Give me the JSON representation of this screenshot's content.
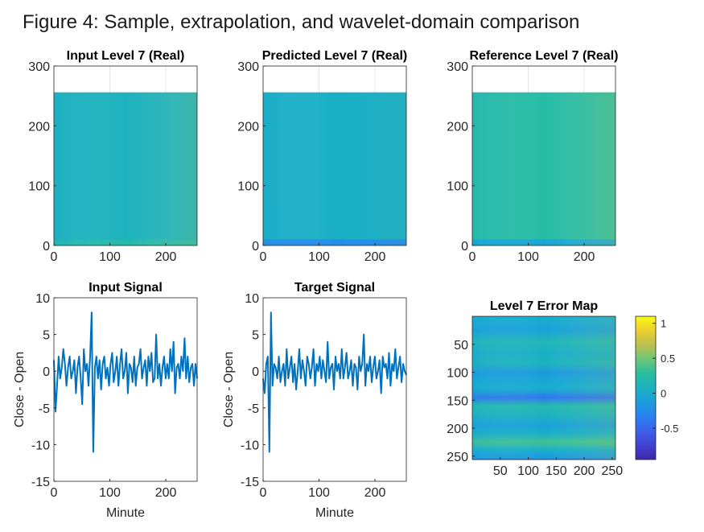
{
  "suptitle": "Figure 4: Sample, extrapolation, and wavelet-domain comparison",
  "colors": {
    "line": "#0072BD",
    "grid": "#e6e6e6",
    "axis": "#262626",
    "colormap": "parula"
  },
  "chart_data": [
    {
      "id": "input-level",
      "type": "heatmap",
      "title": "Input Level 7 (Real)",
      "xlim": [
        0,
        256
      ],
      "ylim": [
        0,
        300
      ],
      "xticks": [
        "0",
        "100",
        "200"
      ],
      "yticks": [
        "0",
        "100",
        "200",
        "300"
      ],
      "image_extent": {
        "x": [
          0,
          256
        ],
        "y": [
          0,
          256
        ]
      },
      "grid": true,
      "bands": [
        {
          "y": 10,
          "v": 0.1
        },
        {
          "y": 25,
          "v": 0.2
        },
        {
          "y": 40,
          "v": 0.05
        },
        {
          "y": 55,
          "v": 0.25
        },
        {
          "y": 70,
          "v": 0.35
        },
        {
          "y": 85,
          "v": 0.45
        },
        {
          "y": 100,
          "v": 0.4
        },
        {
          "y": 115,
          "v": 0.3
        },
        {
          "y": 130,
          "v": 0.05
        },
        {
          "y": 150,
          "v": -0.05
        },
        {
          "y": 170,
          "v": -0.2
        },
        {
          "y": 190,
          "v": 0.05
        },
        {
          "y": 205,
          "v": 0.25
        },
        {
          "y": 220,
          "v": 0.4
        },
        {
          "y": 235,
          "v": 0.45
        },
        {
          "y": 250,
          "v": 0.2
        }
      ],
      "trend": 0.35
    },
    {
      "id": "predicted-level",
      "type": "heatmap",
      "title": "Predicted Level 7 (Real)",
      "xlim": [
        0,
        256
      ],
      "ylim": [
        0,
        300
      ],
      "xticks": [
        "0",
        "100",
        "200"
      ],
      "yticks": [
        "0",
        "100",
        "200",
        "300"
      ],
      "image_extent": {
        "x": [
          0,
          256
        ],
        "y": [
          0,
          256
        ]
      },
      "grid": true,
      "bands": [
        {
          "y": 10,
          "v": 0.05
        },
        {
          "y": 30,
          "v": 0.0
        },
        {
          "y": 55,
          "v": 0.2
        },
        {
          "y": 75,
          "v": 0.1
        },
        {
          "y": 95,
          "v": 0.05
        },
        {
          "y": 115,
          "v": 0.0
        },
        {
          "y": 135,
          "v": 0.05
        },
        {
          "y": 155,
          "v": 0.15
        },
        {
          "y": 175,
          "v": 0.4
        },
        {
          "y": 190,
          "v": 0.45
        },
        {
          "y": 205,
          "v": 0.3
        },
        {
          "y": 225,
          "v": 0.1
        },
        {
          "y": 245,
          "v": -0.25
        }
      ],
      "trend": 0.1
    },
    {
      "id": "reference-level",
      "type": "heatmap",
      "title": "Reference Level 7 (Real)",
      "xlim": [
        0,
        256
      ],
      "ylim": [
        0,
        300
      ],
      "xticks": [
        "0",
        "100",
        "200"
      ],
      "yticks": [
        "0",
        "100",
        "200",
        "300"
      ],
      "image_extent": {
        "x": [
          0,
          256
        ],
        "y": [
          0,
          256
        ]
      },
      "grid": true,
      "bands": [
        {
          "y": 10,
          "v": 0.25
        },
        {
          "y": 25,
          "v": 0.15
        },
        {
          "y": 45,
          "v": 0.3
        },
        {
          "y": 70,
          "v": 0.45
        },
        {
          "y": 90,
          "v": 0.3
        },
        {
          "y": 110,
          "v": 0.0
        },
        {
          "y": 130,
          "v": -0.15
        },
        {
          "y": 150,
          "v": -0.25
        },
        {
          "y": 165,
          "v": 0.1
        },
        {
          "y": 180,
          "v": 0.35
        },
        {
          "y": 200,
          "v": 0.5
        },
        {
          "y": 215,
          "v": 0.45
        },
        {
          "y": 235,
          "v": 0.2
        },
        {
          "y": 250,
          "v": -0.05
        }
      ],
      "trend": 0.4
    },
    {
      "id": "input-signal",
      "type": "line",
      "title": "Input Signal",
      "xlabel": "Minute",
      "ylabel": "Close - Open",
      "xlim": [
        0,
        256
      ],
      "ylim": [
        -15,
        10
      ],
      "xticks": [
        "0",
        "100",
        "200"
      ],
      "yticks": [
        "-15",
        "-10",
        "-5",
        "0",
        "5",
        "10"
      ],
      "series": [
        {
          "values": [
            1.5,
            -5.5,
            -2,
            2,
            -1,
            0.5,
            3,
            1,
            -2,
            0.5,
            2,
            -1,
            0,
            1.5,
            -3,
            0.5,
            2,
            -1,
            -4.5,
            3,
            0,
            1,
            -2,
            2,
            8,
            -11,
            0.5,
            2,
            -1,
            1.5,
            -2.5,
            1,
            2,
            -1,
            0.5,
            -2,
            1,
            2.5,
            -1.5,
            0,
            2,
            -2,
            1,
            3,
            -1,
            0,
            2.5,
            -3,
            1,
            0.5,
            -1.5,
            2,
            -2,
            0.5,
            1,
            3,
            -1,
            0.5,
            1.5,
            -2,
            2,
            0,
            2.5,
            -1.5,
            -1,
            5,
            -1,
            1,
            -2,
            0.5,
            2,
            -1,
            1,
            -1,
            3,
            0,
            4,
            -3,
            0.5,
            1,
            -1,
            2,
            0,
            4.5,
            -1,
            2,
            -1.5,
            0.5,
            1,
            -2,
            1,
            -1
          ]
        }
      ]
    },
    {
      "id": "target-signal",
      "type": "line",
      "title": "Target Signal",
      "xlabel": "Minute",
      "ylabel": "Close - Open",
      "xlim": [
        0,
        256
      ],
      "ylim": [
        -15,
        10
      ],
      "xticks": [
        "0",
        "100",
        "200"
      ],
      "yticks": [
        "-15",
        "-10",
        "-5",
        "0",
        "5",
        "10"
      ],
      "series": [
        {
          "values": [
            -1,
            -3,
            1,
            2,
            -11,
            8,
            -2,
            1,
            0.5,
            -1,
            2,
            -1.5,
            0,
            1,
            -2,
            3,
            -1,
            0.5,
            2,
            -1.5,
            1,
            -2.5,
            0,
            3,
            -1,
            1.5,
            0,
            -2,
            2,
            1,
            -1,
            0.5,
            3,
            -2,
            1,
            0,
            2,
            -1,
            1.5,
            0,
            -1.5,
            4,
            -1,
            0.5,
            1,
            -2.5,
            2,
            0,
            1,
            -1,
            3,
            -1,
            0.5,
            2.5,
            -1,
            0,
            1.5,
            -2,
            1,
            0.5,
            -2.5,
            2,
            0,
            1,
            5,
            -2,
            1,
            0,
            2,
            -1.5,
            0.5,
            2,
            -1,
            0,
            1.5,
            -3,
            2,
            0.5,
            1,
            -1,
            2.5,
            -2,
            1,
            0,
            3,
            -1,
            0.5,
            2,
            -1.5,
            1,
            0,
            -0.5
          ]
        }
      ]
    },
    {
      "id": "error-map",
      "type": "heatmap",
      "title": "Level 7 Error Map",
      "xlim": [
        0,
        256
      ],
      "ylim": [
        256,
        0
      ],
      "xticks": [
        "50",
        "100",
        "150",
        "200",
        "250"
      ],
      "yticks": [
        "50",
        "100",
        "150",
        "200",
        "250"
      ],
      "colorbar": {
        "min": -0.95,
        "max": 1.1,
        "ticks": [
          "1",
          "0.5",
          "0",
          "-0.5"
        ]
      },
      "bands": [
        {
          "y": 5,
          "v": 0.0
        },
        {
          "y": 25,
          "v": -0.1
        },
        {
          "y": 45,
          "v": 0.15
        },
        {
          "y": 65,
          "v": 0.05
        },
        {
          "y": 85,
          "v": 0.1
        },
        {
          "y": 100,
          "v": -0.15
        },
        {
          "y": 115,
          "v": -0.05
        },
        {
          "y": 130,
          "v": 0.0
        },
        {
          "y": 145,
          "v": -0.4
        },
        {
          "y": 160,
          "v": 0.2
        },
        {
          "y": 175,
          "v": 0.1
        },
        {
          "y": 195,
          "v": -0.1
        },
        {
          "y": 210,
          "v": 0.05
        },
        {
          "y": 225,
          "v": 0.35
        },
        {
          "y": 240,
          "v": 0.0
        },
        {
          "y": 255,
          "v": -0.2
        }
      ],
      "trend": 0.3
    }
  ]
}
